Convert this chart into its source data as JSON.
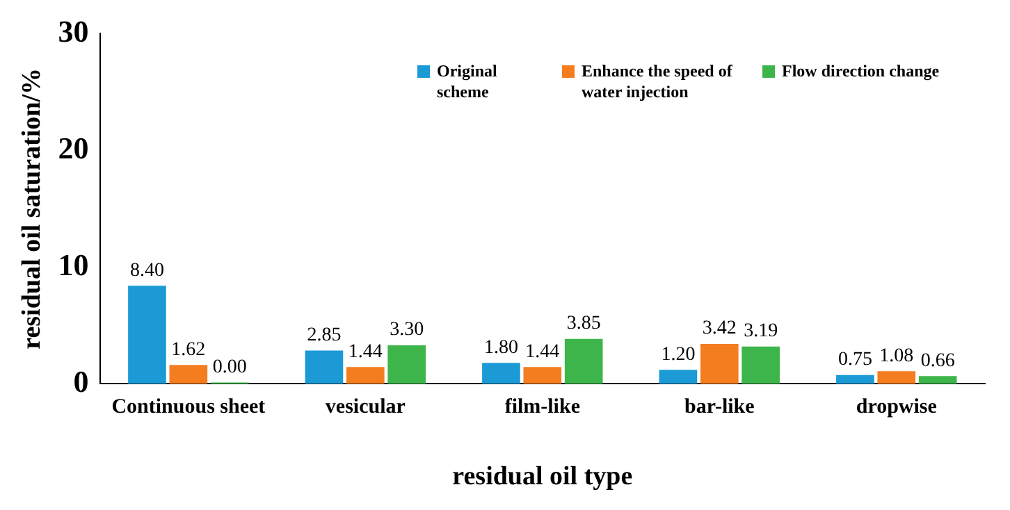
{
  "chart_data": {
    "type": "bar",
    "xlabel": "residual oil type",
    "ylabel": "residual oil saturation/%",
    "categories": [
      "Continuous sheet",
      "vesicular",
      "film-like",
      "bar-like",
      "dropwise"
    ],
    "series": [
      {
        "name": "Original scheme",
        "color": "#1b9ad6",
        "values": [
          8.4,
          2.85,
          1.8,
          1.2,
          0.75
        ],
        "value_labels": [
          "8.40",
          "2.85",
          "1.80",
          "1.20",
          "0.75"
        ]
      },
      {
        "name": "Enhance the speed of water injection",
        "color": "#f47d20",
        "values": [
          1.62,
          1.44,
          1.44,
          3.42,
          1.08
        ],
        "value_labels": [
          "1.62",
          "1.44",
          "1.44",
          "3.42",
          "1.08"
        ]
      },
      {
        "name": "Flow direction change",
        "color": "#3db54a",
        "values": [
          0,
          3.3,
          3.85,
          3.19,
          0.66
        ],
        "value_labels": [
          "0.00",
          "3.30",
          "3.85",
          "3.19",
          "0.66"
        ]
      }
    ],
    "ylim": [
      0,
      30
    ],
    "yticks": [
      0,
      10,
      20,
      30
    ],
    "grid": false,
    "legend": "top right"
  }
}
